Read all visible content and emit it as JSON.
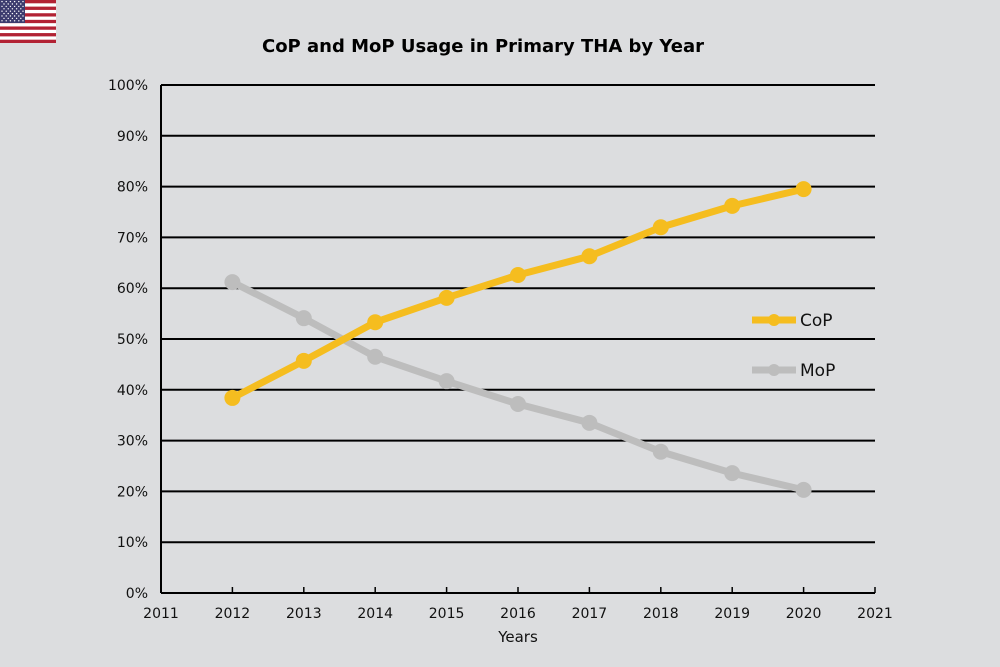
{
  "flag": {
    "icon": "us-flag-icon",
    "colors": {
      "red": "#b22234",
      "white": "#ffffff",
      "blue": "#3c3b6e"
    }
  },
  "chart_data": {
    "type": "line",
    "title": "CoP and MoP Usage in Primary THA by Year",
    "xlabel": "Years",
    "ylabel": "",
    "xlim": [
      2011,
      2021
    ],
    "ylim": [
      0,
      100
    ],
    "x_ticks": [
      "2011",
      "2012",
      "2013",
      "2014",
      "2015",
      "2016",
      "2017",
      "2018",
      "2019",
      "2020",
      "2021"
    ],
    "y_ticks": [
      "0%",
      "10%",
      "20%",
      "30%",
      "40%",
      "50%",
      "60%",
      "70%",
      "80%",
      "90%",
      "100%"
    ],
    "grid": "horizontal",
    "legend_position": "right",
    "x": [
      2012,
      2013,
      2014,
      2015,
      2016,
      2017,
      2018,
      2019,
      2020
    ],
    "series": [
      {
        "name": "CoP",
        "color": "#f5bd1f",
        "values": [
          38.4,
          45.7,
          53.3,
          58.1,
          62.6,
          66.3,
          72.0,
          76.2,
          79.5
        ]
      },
      {
        "name": "MoP",
        "color": "#bdbdbd",
        "values": [
          61.2,
          54.1,
          46.5,
          41.7,
          37.2,
          33.5,
          27.8,
          23.6,
          20.3
        ]
      }
    ]
  }
}
